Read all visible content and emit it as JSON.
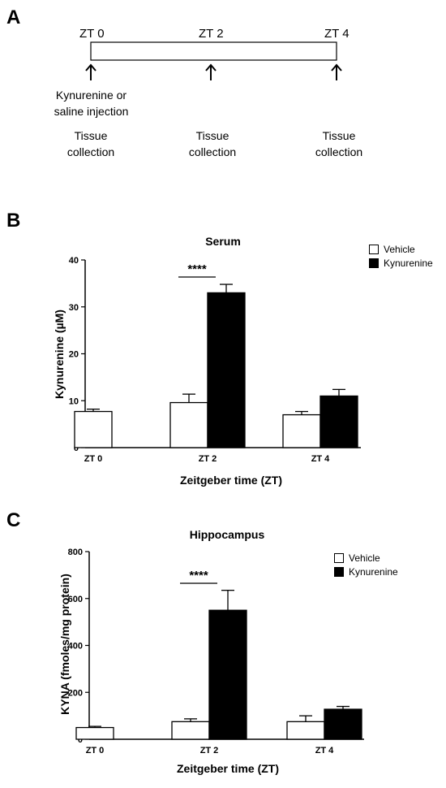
{
  "panels": {
    "a": {
      "letter": "A"
    },
    "b": {
      "letter": "B"
    },
    "c": {
      "letter": "C"
    }
  },
  "timeline": {
    "time_points": [
      "ZT 0",
      "ZT 2",
      "ZT 4"
    ],
    "injection_note": [
      "Kynurenine or",
      "saline injection"
    ],
    "tissue_notes": [
      [
        "Tissue",
        "collection"
      ],
      [
        "Tissue",
        "collection"
      ],
      [
        "Tissue",
        "collection"
      ]
    ]
  },
  "chart_data": [
    {
      "type": "bar",
      "title": "Serum",
      "xlabel": "Zeitgeber time (ZT)",
      "ylabel": "Kynurenine (µM)",
      "categories": [
        "ZT 0",
        "ZT 2",
        "ZT 4"
      ],
      "ylim": [
        0,
        40
      ],
      "yticks": [
        0,
        10,
        20,
        30,
        40
      ],
      "series": [
        {
          "name": "Vehicle",
          "color": "#ffffff",
          "values": [
            7.7,
            9.6,
            7.0
          ],
          "errors": [
            0.5,
            1.8,
            0.7
          ]
        },
        {
          "name": "Kynurenine",
          "color": "#000000",
          "values": [
            null,
            33.0,
            11.0
          ],
          "errors": [
            null,
            1.8,
            1.4
          ]
        }
      ],
      "significance": {
        "category": "ZT 2",
        "label": "****"
      },
      "legend_position": "top-right"
    },
    {
      "type": "bar",
      "title": "Hippocampus",
      "xlabel": "Zeitgeber time (ZT)",
      "ylabel": "KYNA (fmoles/mg protein)",
      "categories": [
        "ZT 0",
        "ZT 2",
        "ZT 4"
      ],
      "ylim": [
        0,
        800
      ],
      "yticks": [
        0,
        200,
        400,
        600,
        800
      ],
      "series": [
        {
          "name": "Vehicle",
          "color": "#ffffff",
          "values": [
            50,
            75,
            75
          ],
          "errors": [
            5,
            12,
            25
          ]
        },
        {
          "name": "Kynurenine",
          "color": "#000000",
          "values": [
            null,
            550,
            128
          ],
          "errors": [
            null,
            85,
            12
          ]
        }
      ],
      "significance": {
        "category": "ZT 2",
        "label": "****"
      },
      "legend_position": "top-right"
    }
  ]
}
